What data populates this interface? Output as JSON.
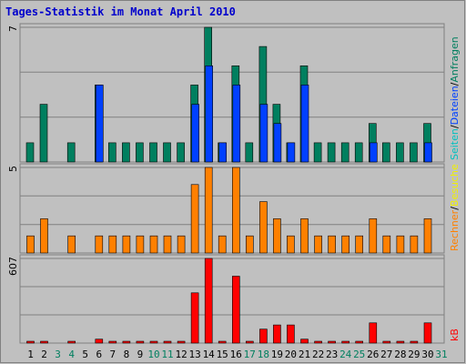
{
  "chart_data": {
    "type": "bar",
    "title": "Tages-Statistik im Monat April 2010",
    "days": [
      "1",
      "2",
      "3",
      "4",
      "5",
      "6",
      "7",
      "8",
      "9",
      "10",
      "11",
      "12",
      "13",
      "14",
      "15",
      "16",
      "17",
      "18",
      "19",
      "20",
      "21",
      "22",
      "23",
      "24",
      "25",
      "26",
      "27",
      "28",
      "29",
      "30",
      "31"
    ],
    "weekend_days": [
      3,
      4,
      10,
      11,
      17,
      18,
      24,
      25,
      31
    ],
    "colors": {
      "background": "#c0c0c0",
      "frame": "#808080",
      "title": "#0000cc",
      "anfragen": "#007f5f",
      "dateien": "#0040ff",
      "seiten": "#00c0c0",
      "besuche": "#f0f000",
      "rechner": "#ff8000",
      "kb": "#ff0000",
      "weekday_label": "#000000",
      "weekend_label": "#007f5f"
    },
    "panels": [
      {
        "id": "requests",
        "max_label": "7",
        "ylim": [
          0,
          7
        ],
        "side_labels": [
          {
            "text": "Anfragen",
            "color": "#007f5f"
          },
          {
            "text": "/",
            "color": "#000000"
          },
          {
            "text": "Dateien",
            "color": "#0040ff"
          },
          {
            "text": "/",
            "color": "#000000"
          },
          {
            "text": "Seiten",
            "color": "#00c0c0"
          }
        ],
        "series": [
          {
            "key": "anfragen",
            "values": [
              1,
              3,
              0,
              1,
              0,
              4,
              1,
              1,
              1,
              1,
              1,
              1,
              4,
              7,
              1,
              5,
              1,
              6,
              3,
              1,
              5,
              1,
              1,
              1,
              1,
              2,
              1,
              1,
              1,
              2,
              0
            ]
          },
          {
            "key": "dateien",
            "values": [
              0,
              0,
              0,
              0,
              0,
              4,
              0,
              0,
              0,
              0,
              0,
              0,
              3,
              5,
              1,
              4,
              0,
              3,
              2,
              1,
              4,
              0,
              0,
              0,
              0,
              1,
              0,
              0,
              0,
              1,
              0
            ]
          }
        ]
      },
      {
        "id": "visits",
        "max_label": "5",
        "ylim": [
          0,
          5
        ],
        "side_labels": [
          {
            "text": "Besuche",
            "color": "#f0f000"
          },
          {
            "text": "/",
            "color": "#000000"
          },
          {
            "text": "Rechner",
            "color": "#ff8000"
          }
        ],
        "series": [
          {
            "key": "rechner",
            "values": [
              1,
              2,
              0,
              1,
              0,
              1,
              1,
              1,
              1,
              1,
              1,
              1,
              4,
              5,
              1,
              5,
              1,
              3,
              2,
              1,
              2,
              1,
              1,
              1,
              1,
              2,
              1,
              1,
              1,
              2,
              0
            ]
          }
        ]
      },
      {
        "id": "traffic",
        "max_label": "607",
        "ylim": [
          0,
          607
        ],
        "side_labels": [
          {
            "text": "kB",
            "color": "#ff0000"
          }
        ],
        "series": [
          {
            "key": "kb",
            "values": [
              10,
              10,
              0,
              10,
              0,
              28,
              10,
              10,
              10,
              10,
              10,
              10,
              360,
              607,
              10,
              480,
              10,
              100,
              130,
              130,
              28,
              10,
              10,
              10,
              10,
              145,
              10,
              10,
              10,
              145,
              0
            ]
          }
        ]
      }
    ]
  }
}
